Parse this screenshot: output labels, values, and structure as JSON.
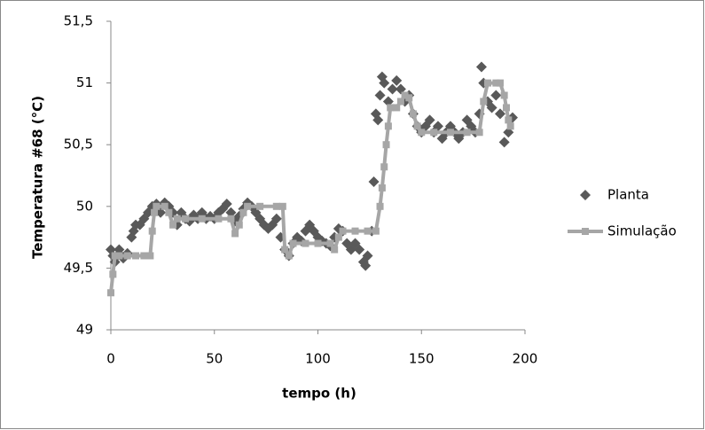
{
  "chart_data": {
    "type": "scatter",
    "xlabel": "tempo (h)",
    "ylabel": "Temperatura #68 (°C)",
    "xlim": [
      0,
      200
    ],
    "xticks": [
      0,
      50,
      100,
      150,
      200
    ],
    "ylim": [
      49,
      51.5
    ],
    "yticks": [
      49,
      {
        "value": 49.5,
        "label": "49,5"
      },
      50,
      {
        "value": 50.5,
        "label": "50,5"
      },
      51,
      {
        "value": 51.5,
        "label": "51,5"
      }
    ],
    "grid": false,
    "legend": "right",
    "series": [
      {
        "name": "Planta",
        "color": "#595959",
        "marker": "diamond",
        "x": [
          0,
          1,
          2,
          3,
          4,
          5,
          6,
          8,
          10,
          11,
          12,
          14,
          16,
          18,
          20,
          22,
          24,
          26,
          28,
          30,
          32,
          34,
          36,
          38,
          40,
          42,
          44,
          46,
          48,
          50,
          52,
          54,
          56,
          58,
          60,
          62,
          64,
          66,
          68,
          70,
          72,
          74,
          76,
          78,
          80,
          82,
          84,
          86,
          88,
          90,
          92,
          94,
          96,
          98,
          100,
          102,
          104,
          106,
          108,
          110,
          112,
          114,
          116,
          118,
          120,
          122,
          123,
          124,
          126,
          127,
          128,
          129,
          130,
          131,
          132,
          134,
          136,
          138,
          140,
          142,
          144,
          146,
          148,
          150,
          152,
          154,
          156,
          158,
          160,
          162,
          164,
          166,
          168,
          170,
          172,
          174,
          176,
          178,
          179,
          180,
          182,
          184,
          186,
          188,
          190,
          192,
          194
        ],
        "values": [
          49.65,
          49.6,
          49.55,
          49.6,
          49.65,
          49.6,
          49.58,
          49.62,
          49.75,
          49.8,
          49.85,
          49.85,
          49.9,
          49.95,
          50.0,
          50.02,
          49.95,
          50.03,
          50.0,
          49.95,
          49.85,
          49.95,
          49.9,
          49.88,
          49.93,
          49.9,
          49.95,
          49.9,
          49.92,
          49.9,
          49.95,
          49.98,
          50.02,
          49.95,
          49.88,
          49.92,
          49.98,
          50.03,
          50.0,
          49.95,
          49.9,
          49.85,
          49.82,
          49.85,
          49.9,
          49.75,
          49.65,
          49.6,
          49.7,
          49.75,
          49.72,
          49.8,
          49.85,
          49.8,
          49.75,
          49.72,
          49.7,
          49.68,
          49.75,
          49.82,
          49.8,
          49.7,
          49.65,
          49.7,
          49.65,
          49.55,
          49.52,
          49.6,
          49.8,
          50.2,
          50.75,
          50.7,
          50.9,
          51.05,
          51.0,
          50.85,
          50.95,
          51.02,
          50.95,
          50.85,
          50.9,
          50.75,
          50.65,
          50.6,
          50.65,
          50.7,
          50.6,
          50.65,
          50.55,
          50.6,
          50.65,
          50.6,
          50.55,
          50.6,
          50.7,
          50.65,
          50.6,
          50.75,
          51.13,
          51.0,
          50.85,
          50.8,
          50.9,
          50.75,
          50.52,
          50.6,
          50.72
        ]
      },
      {
        "name": "Simulação",
        "color": "#a6a6a6",
        "marker": "square",
        "x": [
          0,
          1,
          2,
          4,
          8,
          12,
          16,
          19,
          20,
          21,
          22,
          26,
          28,
          30,
          32,
          36,
          44,
          52,
          58,
          60,
          62,
          64,
          66,
          72,
          80,
          83,
          84,
          86,
          88,
          94,
          100,
          106,
          108,
          110,
          112,
          118,
          124,
          128,
          130,
          131,
          132,
          133,
          134,
          135,
          138,
          140,
          142,
          144,
          146,
          148,
          150,
          156,
          164,
          172,
          178,
          180,
          182,
          186,
          188,
          190,
          191,
          192,
          193
        ],
        "values": [
          49.3,
          49.45,
          49.6,
          49.6,
          49.6,
          49.6,
          49.6,
          49.6,
          49.8,
          49.95,
          50.0,
          50.0,
          49.95,
          49.85,
          49.9,
          49.9,
          49.9,
          49.9,
          49.9,
          49.78,
          49.85,
          49.95,
          50.0,
          50.0,
          50.0,
          50.0,
          49.65,
          49.6,
          49.7,
          49.7,
          49.7,
          49.7,
          49.65,
          49.75,
          49.8,
          49.8,
          49.8,
          49.8,
          50.0,
          50.15,
          50.32,
          50.5,
          50.65,
          50.8,
          50.8,
          50.85,
          50.9,
          50.88,
          50.75,
          50.65,
          50.6,
          50.6,
          50.6,
          50.6,
          50.6,
          50.85,
          51.0,
          51.0,
          51.0,
          50.9,
          50.8,
          50.7,
          50.65
        ]
      }
    ]
  }
}
